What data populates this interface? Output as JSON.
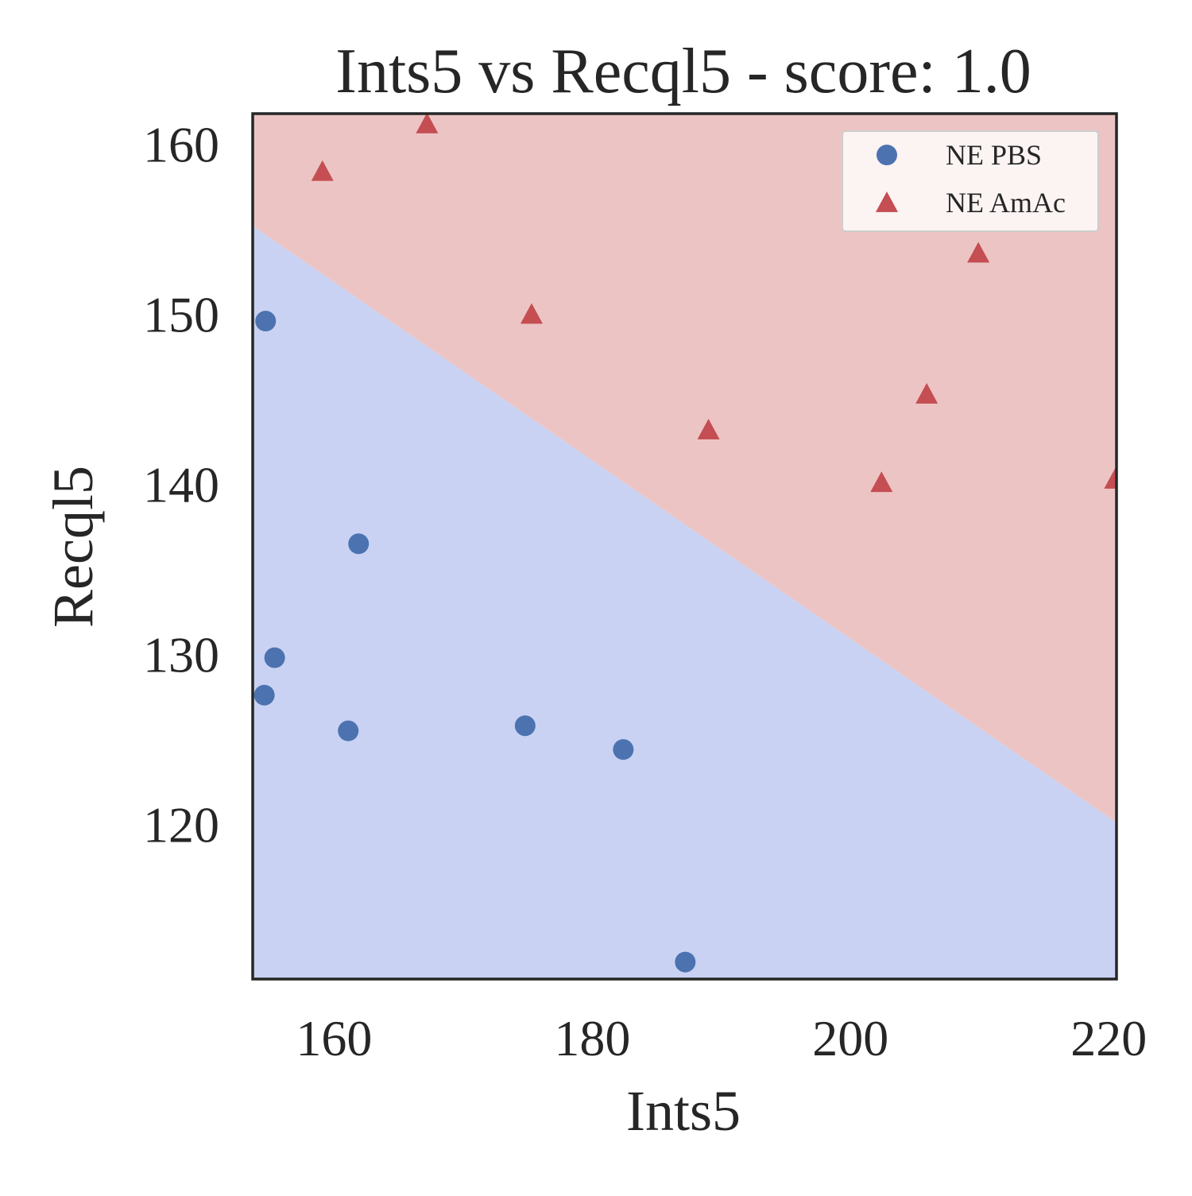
{
  "chart_data": {
    "type": "scatter",
    "title": "Ints5 vs Recql5 - score: 1.0",
    "xlabel": "Ints5",
    "ylabel": "Recql5",
    "xlim": [
      153.7,
      220.6
    ],
    "ylim": [
      110.9,
      161.8
    ],
    "xticks": [
      160,
      180,
      200,
      220
    ],
    "yticks": [
      120,
      130,
      140,
      150,
      160
    ],
    "grid": false,
    "legend_position": "upper right",
    "decision_regions": {
      "boundary_line": [
        [
          153.7,
          155.2
        ],
        [
          220.6,
          120.1
        ]
      ],
      "above_color": "#edc4c4",
      "below_color": "#c9d2f2",
      "above_class": "NE AmAc",
      "below_class": "NE PBS"
    },
    "series": [
      {
        "name": "NE PBS",
        "marker": "circle",
        "color": "#4c72b0",
        "points": [
          [
            154.7,
            149.6
          ],
          [
            155.4,
            129.8
          ],
          [
            154.6,
            127.6
          ],
          [
            161.9,
            136.5
          ],
          [
            161.1,
            125.5
          ],
          [
            174.8,
            125.8
          ],
          [
            182.4,
            124.4
          ],
          [
            187.2,
            111.9
          ]
        ]
      },
      {
        "name": "NE AmAc",
        "marker": "triangle",
        "color": "#c44e52",
        "points": [
          [
            159.1,
            158.4
          ],
          [
            167.2,
            161.2
          ],
          [
            175.3,
            150.0
          ],
          [
            189.0,
            143.2
          ],
          [
            202.4,
            140.1
          ],
          [
            205.9,
            145.3
          ],
          [
            209.9,
            153.6
          ],
          [
            220.5,
            140.3
          ]
        ]
      }
    ]
  }
}
